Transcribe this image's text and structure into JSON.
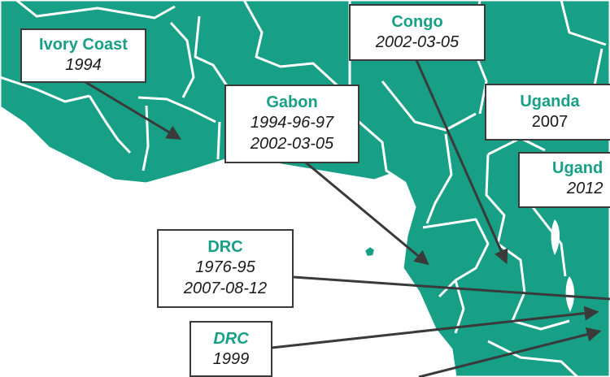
{
  "colors": {
    "land": "#17a085",
    "border": "#ffffff",
    "water": "#ffffff",
    "arrow": "#3a3a3a",
    "name_text": "#17a085",
    "year_text": "#1a1a1a"
  },
  "outbreaks": [
    {
      "country": "Ivory Coast",
      "years": [
        "1994"
      ]
    },
    {
      "country": "Congo",
      "years": [
        "2002-03-05"
      ]
    },
    {
      "country": "Gabon",
      "years": [
        "1994-96-97",
        "2002-03-05"
      ]
    },
    {
      "country": "Uganda",
      "years": [
        "2007"
      ]
    },
    {
      "country": "Ugand",
      "years": [
        "2012"
      ]
    },
    {
      "country": "DRC",
      "years": [
        "1976-95",
        "2007-08-12"
      ]
    },
    {
      "country": "DRC",
      "years": [
        "1999"
      ]
    }
  ]
}
